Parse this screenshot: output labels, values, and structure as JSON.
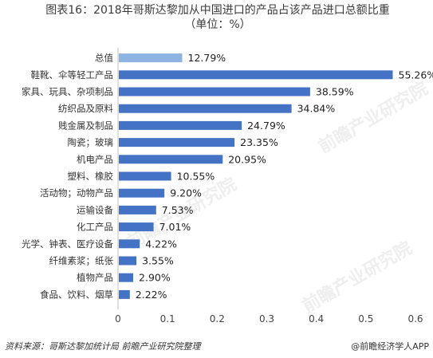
{
  "title_line1": "图表16：2018年哥斯达黎加从中国进口的产品占该产品进口总额比重",
  "title_line2": "（单位：%）",
  "footer": {
    "source": "资料来源：哥斯达黎加统计局 前瞻产业研究院整理",
    "brand": "@前瞻经济学人APP"
  },
  "watermark": "前瞻产业研究院",
  "colors": {
    "bar": "#4472C4",
    "highlight": "#8EB4E3",
    "axis": "#bfbfbf"
  },
  "chart_data": {
    "type": "bar",
    "orientation": "horizontal",
    "categories": [
      "总值",
      "鞋靴、伞等轻工产品",
      "家具、玩具、杂项制品",
      "纺织品及原料",
      "贱金属及制品",
      "陶瓷；玻璃",
      "机电产品",
      "塑料、橡胶",
      "活动物；动物产品",
      "运输设备",
      "化工产品",
      "光学、钟表、医疗设备",
      "纤维素浆；纸张",
      "植物产品",
      "食品、饮料、烟草"
    ],
    "values": [
      0.1279,
      0.5526,
      0.3859,
      0.3484,
      0.2479,
      0.2335,
      0.2095,
      0.1055,
      0.092,
      0.0753,
      0.0701,
      0.0422,
      0.0355,
      0.029,
      0.0222
    ],
    "labels": [
      "12.79%",
      "55.26%",
      "38.59%",
      "34.84%",
      "24.79%",
      "23.35%",
      "20.95%",
      "10.55%",
      "9.20%",
      "7.53%",
      "7.01%",
      "4.22%",
      "3.55%",
      "2.90%",
      "2.22%"
    ],
    "xticks": [
      "0",
      "0.1",
      "0.2",
      "0.3",
      "0.4",
      "0.5",
      "0.6"
    ],
    "xlim": [
      0,
      0.6
    ],
    "highlight_index": 0
  }
}
